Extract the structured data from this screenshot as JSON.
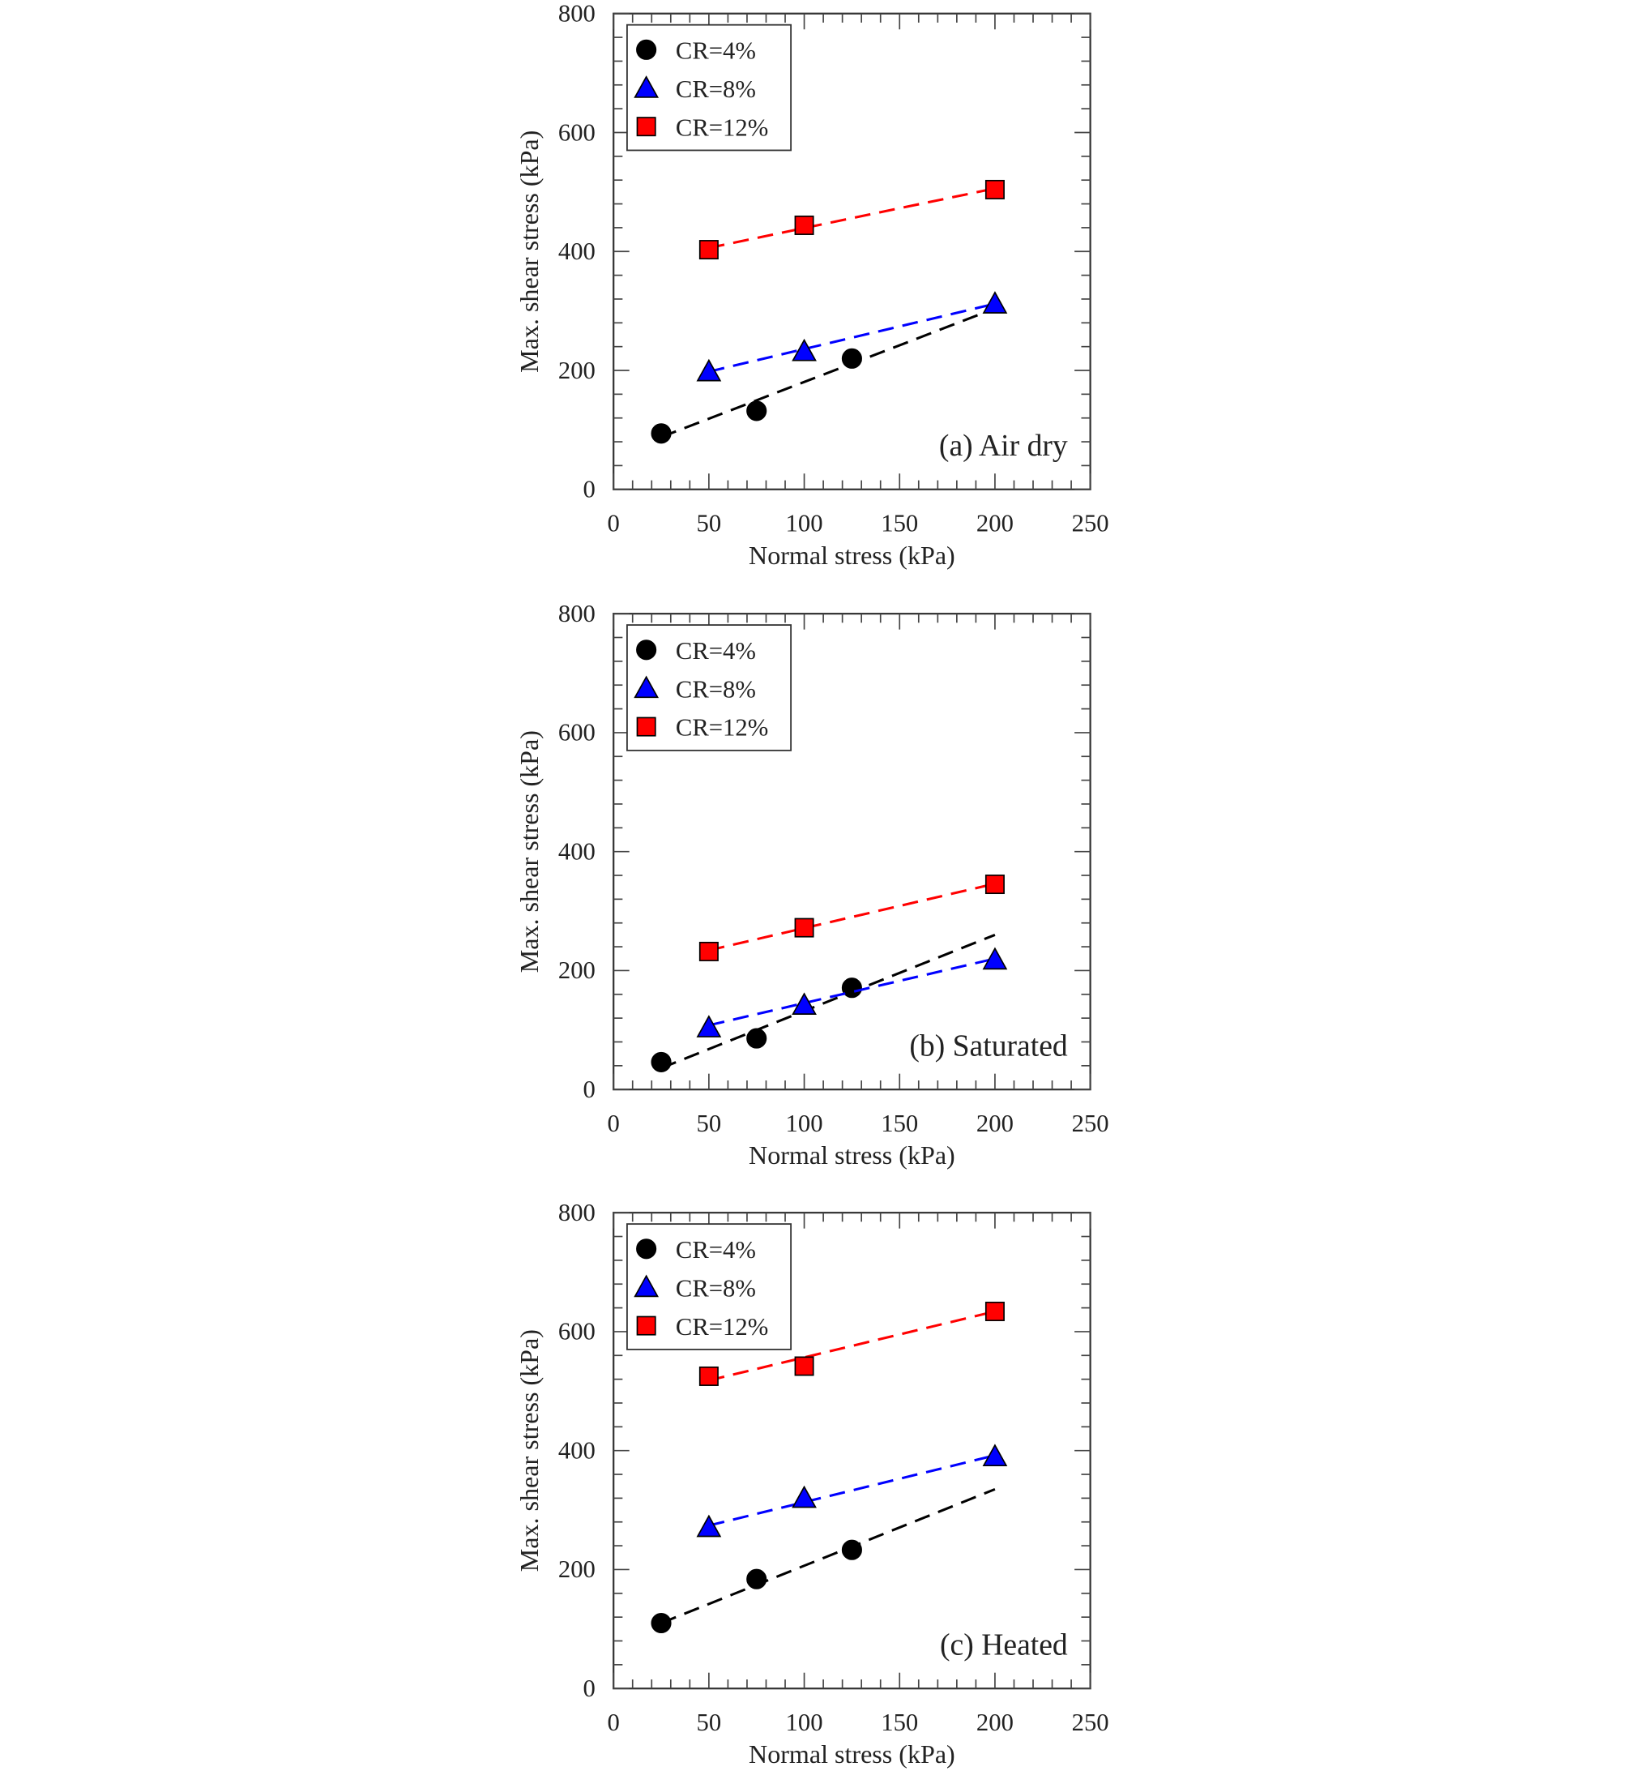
{
  "chart_data": [
    {
      "type": "scatter",
      "panel_label": "(a) Air dry",
      "xlabel": "Normal stress (kPa)",
      "ylabel": "Max. shear stress (kPa)",
      "xlim": [
        0,
        250
      ],
      "ylim": [
        0,
        800
      ],
      "xticks": [
        "0",
        "50",
        "100",
        "150",
        "200",
        "250"
      ],
      "yticks": [
        "0",
        "200",
        "400",
        "600",
        "800"
      ],
      "legend_position": "top-left",
      "series": [
        {
          "name": "CR=4%",
          "marker": "circle",
          "color": "#000000",
          "x": [
            25,
            75,
            125
          ],
          "y": [
            94,
            132,
            220
          ],
          "fit": [
            [
              25,
              88
            ],
            [
              200,
              304
            ]
          ]
        },
        {
          "name": "CR=8%",
          "marker": "triangle",
          "color": "#0000ff",
          "x": [
            50,
            100,
            200
          ],
          "y": [
            198,
            232,
            312
          ],
          "fit": [
            [
              50,
              198
            ],
            [
              200,
              312
            ]
          ]
        },
        {
          "name": "CR=12%",
          "marker": "square",
          "color": "#ff0000",
          "x": [
            50,
            100,
            200
          ],
          "y": [
            403,
            444,
            504
          ],
          "fit": [
            [
              50,
              406
            ],
            [
              200,
              506
            ]
          ]
        }
      ]
    },
    {
      "type": "scatter",
      "panel_label": "(b) Saturated",
      "xlabel": "Normal stress (kPa)",
      "ylabel": "Max. shear stress (kPa)",
      "xlim": [
        0,
        250
      ],
      "ylim": [
        0,
        800
      ],
      "xticks": [
        "0",
        "50",
        "100",
        "150",
        "200",
        "250"
      ],
      "yticks": [
        "0",
        "200",
        "400",
        "600",
        "800"
      ],
      "legend_position": "top-left",
      "series": [
        {
          "name": "CR=4%",
          "marker": "circle",
          "color": "#000000",
          "x": [
            25,
            75,
            125
          ],
          "y": [
            46,
            86,
            171
          ],
          "fit": [
            [
              25,
              36
            ],
            [
              200,
              260
            ]
          ]
        },
        {
          "name": "CR=8%",
          "marker": "triangle",
          "color": "#0000ff",
          "x": [
            50,
            100,
            200
          ],
          "y": [
            104,
            142,
            218
          ],
          "fit": [
            [
              50,
              108
            ],
            [
              200,
              220
            ]
          ]
        },
        {
          "name": "CR=12%",
          "marker": "square",
          "color": "#ff0000",
          "x": [
            50,
            100,
            200
          ],
          "y": [
            232,
            272,
            345
          ],
          "fit": [
            [
              50,
              234
            ],
            [
              200,
              346
            ]
          ]
        }
      ]
    },
    {
      "type": "scatter",
      "panel_label": "(c) Heated",
      "xlabel": "Normal stress (kPa)",
      "ylabel": "Max. shear stress (kPa)",
      "xlim": [
        0,
        250
      ],
      "ylim": [
        0,
        800
      ],
      "xticks": [
        "0",
        "50",
        "100",
        "150",
        "200",
        "250"
      ],
      "yticks": [
        "0",
        "200",
        "400",
        "600",
        "800"
      ],
      "legend_position": "top-left",
      "series": [
        {
          "name": "CR=4%",
          "marker": "circle",
          "color": "#000000",
          "x": [
            25,
            75,
            125
          ],
          "y": [
            110,
            184,
            233
          ],
          "fit": [
            [
              25,
              110
            ],
            [
              200,
              335
            ]
          ]
        },
        {
          "name": "CR=8%",
          "marker": "triangle",
          "color": "#0000ff",
          "x": [
            50,
            100,
            200
          ],
          "y": [
            271,
            320,
            390
          ],
          "fit": [
            [
              50,
              274
            ],
            [
              200,
              392
            ]
          ]
        },
        {
          "name": "CR=12%",
          "marker": "square",
          "color": "#ff0000",
          "x": [
            50,
            100,
            200
          ],
          "y": [
            525,
            542,
            634
          ],
          "fit": [
            [
              50,
              518
            ],
            [
              200,
              634
            ]
          ]
        }
      ]
    }
  ]
}
